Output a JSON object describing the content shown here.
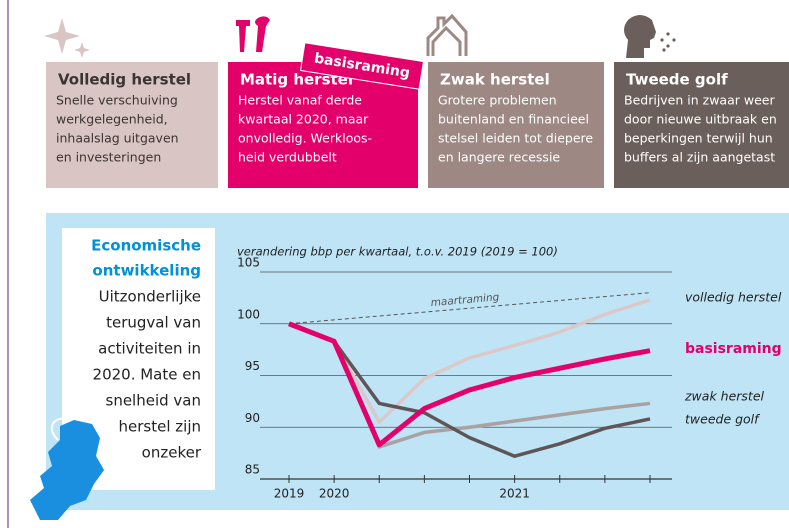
{
  "cards": [
    {
      "title": "Volledig herstel",
      "lines": [
        "Snelle verschuiving",
        "werkgelegenheid,",
        "inhaalslag uitgaven",
        "en investeringen"
      ],
      "color": "#d9c5c4",
      "text_color": "#3a3434"
    },
    {
      "title": "Matig herstel",
      "lines": [
        "Herstel vanaf derde",
        "kwartaal 2020, maar",
        "onvolledig. Werkloos-",
        "heid verdubbelt"
      ],
      "color": "#e4006b",
      "text_color": "#ffffff",
      "badge": "basisraming"
    },
    {
      "title": "Zwak herstel",
      "lines": [
        "Grotere problemen",
        "buitenland en financieel",
        "stelsel leiden tot diepere",
        "en langere recessie"
      ],
      "color": "#9d8883",
      "text_color": "#ffffff"
    },
    {
      "title": "Tweede golf",
      "lines": [
        "Bedrijven in zwaar weer",
        "door nieuwe uitbraak en",
        "beperkingen terwijl hun",
        "buffers al zijn aangetast"
      ],
      "color": "#6b5f5c",
      "text_color": "#ffffff"
    }
  ],
  "sidebar": {
    "heading": [
      "Economische",
      "ontwikkeling"
    ],
    "lines": [
      "Uitzonderlijke",
      "terugval van",
      "activiteiten in",
      "2020. Mate en",
      "snelheid van",
      "herstel zijn",
      "onzeker"
    ]
  },
  "chart_data": {
    "type": "line",
    "title": "verandering bbp per kwartaal, t.o.v. 2019 (2019 = 100)",
    "categories": [
      "2019",
      "2020",
      null,
      null,
      null,
      "2021",
      null,
      null,
      null
    ],
    "ylim": [
      85,
      105
    ],
    "yticks": [
      85,
      90,
      95,
      100,
      105
    ],
    "grid": true,
    "series": [
      {
        "name": "maartraming",
        "color": "#555555",
        "dashed": true,
        "values": [
          100,
          100.375,
          100.75,
          101.125,
          101.5,
          101.875,
          102.25,
          102.625,
          103
        ]
      },
      {
        "name": "volledig herstel",
        "color": "#dcc8c9",
        "values": [
          100,
          98.3,
          90.5,
          94.7,
          96.7,
          97.9,
          99.2,
          100.9,
          102.3
        ]
      },
      {
        "name": "zwak herstel",
        "color": "#aaa2a2",
        "values": [
          100,
          98.3,
          88.1,
          89.5,
          90.0,
          90.6,
          91.2,
          91.8,
          92.3
        ]
      },
      {
        "name": "tweede golf",
        "color": "#5e5656",
        "values": [
          100,
          98.3,
          92.3,
          91.4,
          89.0,
          87.2,
          88.4,
          89.9,
          90.8
        ]
      },
      {
        "name": "basisraming",
        "color": "#e4006b",
        "values": [
          100,
          98.3,
          88.3,
          91.8,
          93.6,
          94.8,
          95.7,
          96.6,
          97.4
        ]
      }
    ]
  }
}
